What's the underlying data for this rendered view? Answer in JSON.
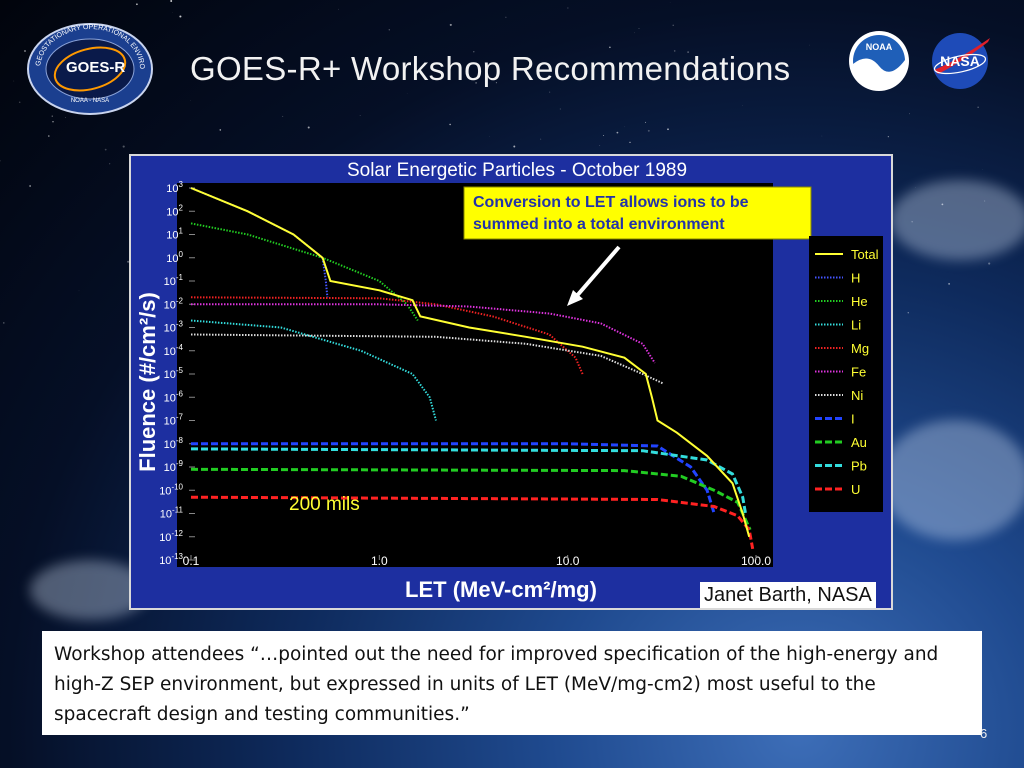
{
  "title": "GOES-R+ Workshop Recommendations",
  "logos": {
    "goes": {
      "text": "GOES-R",
      "ring_text": "GEOSTATIONARY OPERATIONAL ENVIRONMENTAL SATELLITE SERIES",
      "bottom_text": "NOAA - NASA"
    },
    "noaa": {
      "text": "NOAA"
    },
    "nasa": {
      "text": "NASA"
    }
  },
  "credit": "Janet Barth, NASA",
  "caption": "Workshop attendees “…pointed out the need for improved specification of the high-energy and high-Z SEP environment, but expressed in units of LET (MeV/mg-cm2) most useful to the spacecraft design and testing communities.”",
  "page_number": "6",
  "colors": {
    "chart_bg": "#1d2fa0",
    "plot_bg": "#000000",
    "callout_bg": "#ffff00"
  },
  "chart_data": {
    "type": "line",
    "title": "Solar Energetic Particles - October 1989",
    "xlabel": "LET (MeV-cm²/mg)",
    "ylabel": "Fluence (#/cm²/s)",
    "xscale": "log",
    "yscale": "log",
    "xlim": [
      0.1,
      100
    ],
    "ylim": [
      1e-13,
      1000
    ],
    "x_ticks": [
      {
        "value": 0.1,
        "label": "0.1"
      },
      {
        "value": 1,
        "label": "1.0"
      },
      {
        "value": 10,
        "label": "10.0"
      },
      {
        "value": 100,
        "label": "100.0"
      }
    ],
    "y_ticks": [
      {
        "exp": 3
      },
      {
        "exp": 2
      },
      {
        "exp": 1
      },
      {
        "exp": 0
      },
      {
        "exp": -1
      },
      {
        "exp": -2
      },
      {
        "exp": -3
      },
      {
        "exp": -4
      },
      {
        "exp": -5
      },
      {
        "exp": -6
      },
      {
        "exp": -7
      },
      {
        "exp": -8
      },
      {
        "exp": -9
      },
      {
        "exp": -10
      },
      {
        "exp": -11
      },
      {
        "exp": -12
      },
      {
        "exp": -13
      }
    ],
    "annotation": "Conversion to LET allows ions to be summed into a total environment",
    "note": "200 mils",
    "legend_position": "right",
    "series": [
      {
        "name": "Total",
        "color": "#ffff33",
        "style": "solid",
        "points": [
          [
            0.1,
            1000
          ],
          [
            0.2,
            100
          ],
          [
            0.35,
            10
          ],
          [
            0.5,
            1
          ],
          [
            0.55,
            0.1
          ],
          [
            1.0,
            0.04
          ],
          [
            1.5,
            0.015
          ],
          [
            1.65,
            0.003
          ],
          [
            3,
            0.001
          ],
          [
            6,
            0.0004
          ],
          [
            12,
            0.00015
          ],
          [
            20,
            5e-05
          ],
          [
            26,
            1e-05
          ],
          [
            28,
            1e-06
          ],
          [
            30,
            1e-07
          ],
          [
            38,
            3e-08
          ],
          [
            55,
            3e-09
          ],
          [
            75,
            2e-10
          ],
          [
            85,
            1e-11
          ],
          [
            92,
            1e-12
          ]
        ]
      },
      {
        "name": "H",
        "color": "#4455ff",
        "style": "dotted",
        "points": [
          [
            0.1,
            1000
          ],
          [
            0.2,
            100
          ],
          [
            0.35,
            10
          ],
          [
            0.5,
            1
          ],
          [
            0.52,
            0.1
          ],
          [
            0.53,
            0.02
          ]
        ]
      },
      {
        "name": "He",
        "color": "#22cc22",
        "style": "dotted",
        "points": [
          [
            0.1,
            30
          ],
          [
            0.2,
            10
          ],
          [
            0.5,
            1
          ],
          [
            1.0,
            0.1
          ],
          [
            1.4,
            0.01
          ],
          [
            1.6,
            0.002
          ]
        ]
      },
      {
        "name": "Li",
        "color": "#33dddd",
        "style": "dotted",
        "points": [
          [
            0.1,
            0.002
          ],
          [
            0.3,
            0.001
          ],
          [
            0.8,
            0.0001
          ],
          [
            1.5,
            1e-05
          ],
          [
            1.85,
            1e-06
          ],
          [
            2.0,
            1e-07
          ]
        ]
      },
      {
        "name": "Mg",
        "color": "#ee2222",
        "style": "dotted",
        "points": [
          [
            0.1,
            0.02
          ],
          [
            1.0,
            0.018
          ],
          [
            2,
            0.01
          ],
          [
            4,
            0.003
          ],
          [
            8,
            0.0005
          ],
          [
            11,
            5e-05
          ],
          [
            12,
            1e-05
          ]
        ]
      },
      {
        "name": "Fe",
        "color": "#dd33dd",
        "style": "dotted",
        "points": [
          [
            0.1,
            0.01
          ],
          [
            1,
            0.01
          ],
          [
            3,
            0.008
          ],
          [
            8,
            0.004
          ],
          [
            15,
            0.0015
          ],
          [
            25,
            0.0002
          ],
          [
            29,
            3e-05
          ]
        ]
      },
      {
        "name": "Ni",
        "color": "#dddddd",
        "style": "dotted",
        "points": [
          [
            0.1,
            0.0005
          ],
          [
            2,
            0.0004
          ],
          [
            6,
            0.0002
          ],
          [
            15,
            6e-05
          ],
          [
            25,
            1e-05
          ],
          [
            32,
            4e-06
          ]
        ]
      },
      {
        "name": "I",
        "color": "#2244ff",
        "style": "dashed",
        "points": [
          [
            0.1,
            1e-08
          ],
          [
            10,
            1e-08
          ],
          [
            30,
            8e-09
          ],
          [
            45,
            1e-09
          ],
          [
            55,
            1e-10
          ],
          [
            60,
            1e-11
          ]
        ]
      },
      {
        "name": "Au",
        "color": "#22cc22",
        "style": "dashed",
        "points": [
          [
            0.1,
            8e-10
          ],
          [
            20,
            7e-10
          ],
          [
            40,
            4e-10
          ],
          [
            60,
            1e-10
          ],
          [
            80,
            3e-11
          ],
          [
            93,
            2e-12
          ]
        ]
      },
      {
        "name": "Pb",
        "color": "#33dddd",
        "style": "dashed",
        "points": [
          [
            0.1,
            6e-09
          ],
          [
            25,
            5e-09
          ],
          [
            55,
            2e-09
          ],
          [
            75,
            5e-10
          ],
          [
            85,
            5e-11
          ],
          [
            88,
            1e-11
          ]
        ]
      },
      {
        "name": "U",
        "color": "#ff2222",
        "style": "dashed",
        "points": [
          [
            0.1,
            5e-11
          ],
          [
            30,
            4e-11
          ],
          [
            60,
            2e-11
          ],
          [
            80,
            8e-12
          ],
          [
            92,
            2e-12
          ],
          [
            96,
            3e-13
          ]
        ]
      }
    ]
  }
}
